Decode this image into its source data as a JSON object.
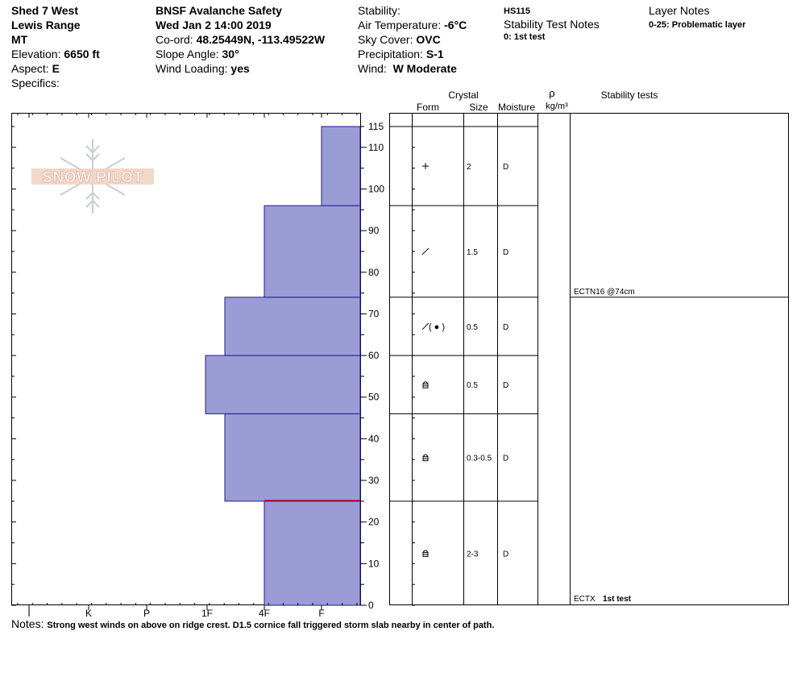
{
  "header": {
    "site": "Shed 7 West",
    "range": "Lewis Range",
    "state": "MT",
    "elevation_label": "Elevation:",
    "elevation_value": "6650 ft",
    "aspect_label": "Aspect:",
    "aspect_value": "E",
    "specifics_label": "Specifics:",
    "org": "BNSF Avalanche Safety",
    "datetime": "Wed Jan 2 14:00 2019",
    "coord_label": "Co-ord:",
    "coord_value": "48.25449N, -113.49522W",
    "slope_label": "Slope Angle:",
    "slope_value": "30°",
    "wind_loading_label": "Wind Loading:",
    "wind_loading_value": "yes",
    "stability_label": "Stability:",
    "air_temp_label": "Air Temperature:",
    "air_temp_value": "-6°C",
    "sky_label": "Sky Cover:",
    "sky_value": "OVC",
    "precip_label": "Precipitation:",
    "precip_value": "S-1",
    "wind_label": "Wind:",
    "wind_value": "W Moderate",
    "hs": "HS115",
    "stability_notes_title": "Stability Test Notes",
    "stability_notes_text": "0: 1st test",
    "layer_notes_title": "Layer Notes",
    "layer_notes_text": "0-25: Problematic layer"
  },
  "logo": {
    "text": "SNOW PILOT"
  },
  "table_headers": {
    "crystal": "Crystal",
    "form": "Form",
    "size": "Size",
    "moisture": "Moisture",
    "rho": "ρ",
    "density_unit": "kg/m³",
    "stability_tests": "Stability tests"
  },
  "notes": {
    "label": "Notes:",
    "text": "Strong west winds on above on ridge crest. D1.5 cornice fall triggered storm slab nearby in center of path."
  },
  "colors": {
    "bar_fill": "#9b9cd6",
    "bar_stroke": "#1e1e8c",
    "problem_line": "#c0102a"
  },
  "chart_data": {
    "type": "bar",
    "orientation": "horizontal",
    "x_categories": [
      "I",
      "K",
      "P",
      "1F",
      "4F",
      "F"
    ],
    "y_ticks": [
      0,
      10,
      20,
      30,
      40,
      50,
      60,
      70,
      80,
      90,
      100,
      110,
      115
    ],
    "ylim": [
      0,
      115
    ],
    "layers": [
      {
        "from": 0,
        "to": 25,
        "hardness": "4F",
        "form": "lattice",
        "size": "2-3",
        "moisture": "D"
      },
      {
        "from": 25,
        "to": 46,
        "hardness": "4F+",
        "form": "lattice",
        "size": "0.3-0.5",
        "moisture": "D"
      },
      {
        "from": 46,
        "to": 60,
        "hardness": "1F-",
        "form": "lattice",
        "size": "0.5",
        "moisture": "D"
      },
      {
        "from": 60,
        "to": 74,
        "hardness": "4F+",
        "form": "broken-rounded",
        "size": "0.5",
        "moisture": "D"
      },
      {
        "from": 74,
        "to": 96,
        "hardness": "4F",
        "form": "broken",
        "size": "1.5",
        "moisture": "D"
      },
      {
        "from": 96,
        "to": 115,
        "hardness": "F",
        "form": "plus",
        "size": "2",
        "moisture": "D"
      }
    ],
    "problematic_depth": 25,
    "stability_tests": [
      {
        "depth": 74,
        "label": "ECTN16 @74cm"
      },
      {
        "depth": 0,
        "label": "ECTX",
        "note": "1st test"
      }
    ]
  }
}
